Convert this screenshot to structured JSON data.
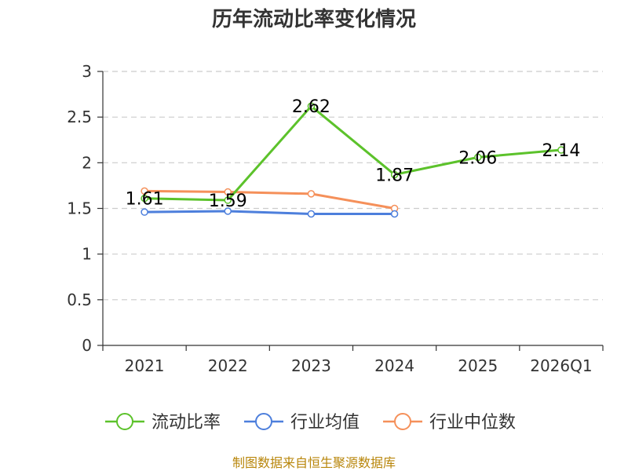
{
  "chart_data": {
    "type": "line",
    "title": "历年流动比率变化情况",
    "categories": [
      "2021",
      "2022",
      "2023",
      "2024",
      "2025",
      "2026Q1"
    ],
    "ylim": [
      0,
      3
    ],
    "yticks": [
      "0",
      "0.5",
      "1",
      "1.5",
      "2",
      "2.5",
      "3"
    ],
    "grid": true,
    "legend_position": "bottom",
    "series": [
      {
        "name": "流动比率",
        "color": "#5cc22b",
        "values": [
          1.61,
          1.59,
          2.62,
          1.87,
          2.06,
          2.14
        ],
        "labels": [
          "1.61",
          "1.59",
          "2.62",
          "1.87",
          "2.06",
          "2.14"
        ]
      },
      {
        "name": "行业均值",
        "color": "#4d7fdc",
        "values": [
          1.46,
          1.47,
          1.44,
          1.44,
          null,
          null
        ]
      },
      {
        "name": "行业中位数",
        "color": "#f5905a",
        "values": [
          1.69,
          1.68,
          1.66,
          1.5,
          null,
          null
        ]
      }
    ],
    "source": "制图数据来自恒生聚源数据库"
  }
}
